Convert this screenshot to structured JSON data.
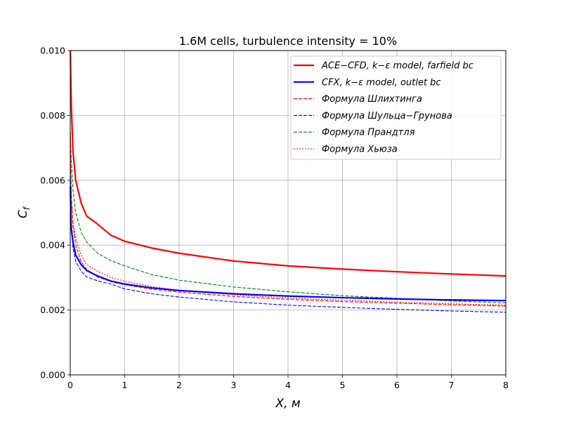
{
  "chart_data": {
    "type": "line",
    "title": "1.6M cells, turbulence intensity = 10%",
    "xlabel": "X,  м",
    "ylabel_main": "C",
    "ylabel_sub": "f",
    "xlim": [
      0,
      8
    ],
    "ylim": [
      0,
      0.01
    ],
    "x_ticks": [
      0,
      1,
      2,
      3,
      4,
      5,
      6,
      7,
      8
    ],
    "y_ticks": [
      0.0,
      0.002,
      0.004,
      0.006,
      0.008,
      0.01
    ],
    "x_tick_labels": [
      "0",
      "1",
      "2",
      "3",
      "4",
      "5",
      "6",
      "7",
      "8"
    ],
    "y_tick_labels": [
      "0.000",
      "0.002",
      "0.004",
      "0.006",
      "0.008",
      "0.010"
    ],
    "grid": true,
    "legend_position": "top-right",
    "x": [
      0.003,
      0.01,
      0.02,
      0.05,
      0.1,
      0.2,
      0.3,
      0.5,
      0.75,
      1,
      1.5,
      2,
      3,
      4,
      5,
      6,
      7,
      8
    ],
    "series": [
      {
        "name": "ACE−CFD, k−ε model, farfield bc",
        "color": "#ff0000",
        "style": "solid-thick",
        "values": [
          0.01,
          0.0092,
          0.0083,
          0.0069,
          0.006,
          0.0053,
          0.0049,
          0.00465,
          0.0043,
          0.00412,
          0.00391,
          0.00375,
          0.00351,
          0.00336,
          0.00326,
          0.00318,
          0.00311,
          0.00305
        ]
      },
      {
        "name": "CFX, k−ε model, outlet bc",
        "color": "#0000ff",
        "style": "solid-thick",
        "values": [
          0.0058,
          0.0049,
          0.0045,
          0.0041,
          0.0037,
          0.0034,
          0.00322,
          0.00305,
          0.00289,
          0.0028,
          0.00268,
          0.0026,
          0.0025,
          0.00243,
          0.00238,
          0.00234,
          0.00231,
          0.00229
        ]
      },
      {
        "name": "Формула Шлихтинга",
        "color": "#ff0000",
        "style": "dashed",
        "values": [
          0.0075,
          0.0062,
          0.0055,
          0.0046,
          0.004,
          0.0035,
          0.00325,
          0.00302,
          0.00287,
          0.00278,
          0.00264,
          0.00255,
          0.00242,
          0.00233,
          0.00226,
          0.00221,
          0.00216,
          0.00212
        ]
      },
      {
        "name": "Формула Шульца−Грунова",
        "color": "#0000ff",
        "style": "dashed",
        "values": [
          0.0063,
          0.0052,
          0.0046,
          0.0039,
          0.0035,
          0.0032,
          0.00302,
          0.0029,
          0.0028,
          0.00265,
          0.0025,
          0.0024,
          0.00225,
          0.00215,
          0.00208,
          0.00202,
          0.00197,
          0.00193
        ]
      },
      {
        "name": "Формула Прандтля",
        "color": "#008000",
        "style": "dashed",
        "values": [
          0.0074,
          0.007,
          0.0066,
          0.0057,
          0.005,
          0.0044,
          0.0041,
          0.00375,
          0.00352,
          0.00336,
          0.00309,
          0.00292,
          0.00271,
          0.00256,
          0.00244,
          0.00236,
          0.00228,
          0.00222
        ]
      },
      {
        "name": "Формула Хьюза",
        "color": "#ff0000",
        "style": "dotted",
        "values": [
          0.0072,
          0.0061,
          0.0055,
          0.0047,
          0.0042,
          0.0037,
          0.0034,
          0.0032,
          0.003,
          0.00289,
          0.00272,
          0.00261,
          0.00247,
          0.00237,
          0.0023,
          0.00224,
          0.00219,
          0.00215
        ]
      }
    ]
  }
}
